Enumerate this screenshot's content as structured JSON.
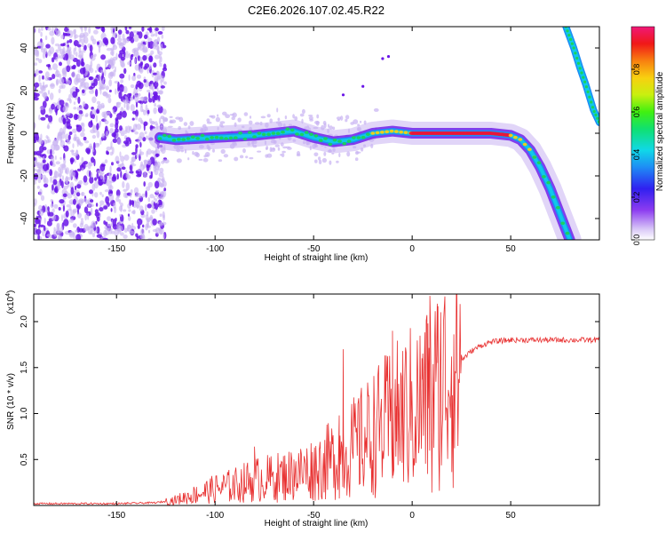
{
  "title": "C2E6.2026.107.02.45.R22",
  "colors": {
    "snr_line": "#e83030",
    "strong": "#e8163a",
    "medium": "#19d35a",
    "weak_fg": "#6a16e8",
    "weak_bg": "#c8b2f2",
    "cyan": "#10c8e8"
  },
  "chart_data": [
    {
      "type": "heatmap",
      "name": "spectrogram",
      "xlabel": "Height of straight line (km)",
      "ylabel": "Frequency (Hz)",
      "xlim": [
        -192,
        95
      ],
      "ylim": [
        -50,
        50
      ],
      "xticks": [
        -150,
        -100,
        -50,
        0,
        50
      ],
      "yticks": [
        -40,
        -20,
        0,
        20,
        40
      ],
      "colorbar": {
        "label": "Normalized spectral amplitude",
        "range": [
          0,
          1
        ],
        "ticks": [
          0.0,
          0.2,
          0.4,
          0.6,
          0.8
        ]
      },
      "noise_region_x": [
        -192,
        -128
      ],
      "main_trace": [
        [
          -128,
          -2
        ],
        [
          -120,
          -3
        ],
        [
          -100,
          -2
        ],
        [
          -80,
          -1
        ],
        [
          -60,
          1
        ],
        [
          -50,
          -2
        ],
        [
          -40,
          -4
        ],
        [
          -30,
          -3
        ],
        [
          -20,
          0
        ],
        [
          -10,
          1
        ],
        [
          0,
          0
        ],
        [
          20,
          0
        ],
        [
          40,
          0
        ],
        [
          50,
          -1
        ],
        [
          55,
          -3
        ],
        [
          60,
          -8
        ],
        [
          65,
          -16
        ],
        [
          70,
          -26
        ],
        [
          75,
          -38
        ],
        [
          80,
          -50
        ]
      ],
      "right_trace": [
        [
          78,
          50
        ],
        [
          82,
          40
        ],
        [
          85,
          31
        ],
        [
          88,
          23
        ],
        [
          92,
          11
        ],
        [
          95,
          5
        ]
      ],
      "trace_strength": [
        {
          "from": -128,
          "to": -20,
          "level": "medium"
        },
        {
          "from": -20,
          "to": 0,
          "level": "high"
        },
        {
          "from": 0,
          "to": 50,
          "level": "max"
        },
        {
          "from": 50,
          "to": 62,
          "level": "high"
        },
        {
          "from": 62,
          "to": 80,
          "level": "medium"
        }
      ]
    },
    {
      "type": "line",
      "name": "snr",
      "xlabel": "Height of straight line (km)",
      "ylabel": "SNR (10 * v/v)",
      "multiplier_label": "(x10",
      "multiplier_exp": "4",
      "xlim": [
        -192,
        95
      ],
      "ylim": [
        0,
        2.3
      ],
      "xticks": [
        -150,
        -100,
        -50,
        0,
        50
      ],
      "yticks": [
        0.5,
        1.0,
        1.5,
        2.0
      ],
      "series": [
        {
          "name": "SNR",
          "envelope": [
            [
              -192,
              0.02
            ],
            [
              -150,
              0.02
            ],
            [
              -130,
              0.03
            ],
            [
              -120,
              0.06
            ],
            [
              -110,
              0.12
            ],
            [
              -100,
              0.18
            ],
            [
              -90,
              0.22
            ],
            [
              -80,
              0.28
            ],
            [
              -70,
              0.3
            ],
            [
              -60,
              0.34
            ],
            [
              -50,
              0.4
            ],
            [
              -40,
              0.5
            ],
            [
              -30,
              0.62
            ],
            [
              -20,
              0.78
            ],
            [
              -10,
              0.92
            ],
            [
              0,
              1.05
            ],
            [
              5,
              1.1
            ],
            [
              10,
              1.2
            ],
            [
              15,
              1.35
            ],
            [
              20,
              1.45
            ],
            [
              25,
              1.58
            ],
            [
              30,
              1.68
            ],
            [
              35,
              1.74
            ],
            [
              40,
              1.78
            ],
            [
              50,
              1.8
            ],
            [
              70,
              1.8
            ],
            [
              95,
              1.8
            ]
          ],
          "spikes": [
            [
              -80,
              0.64
            ],
            [
              -60,
              0.5
            ],
            [
              -47,
              0.62
            ],
            [
              -37,
              0.98
            ],
            [
              -35,
              1.7
            ],
            [
              -27,
              1.1
            ],
            [
              -22,
              1.2
            ],
            [
              -14,
              1.33
            ],
            [
              -10,
              1.9
            ],
            [
              -8,
              1.08
            ],
            [
              5,
              1.6
            ],
            [
              8,
              1.98
            ],
            [
              9,
              2.28
            ],
            [
              10,
              0.14
            ],
            [
              13,
              1.55
            ],
            [
              20,
              1.62
            ]
          ]
        }
      ]
    }
  ]
}
